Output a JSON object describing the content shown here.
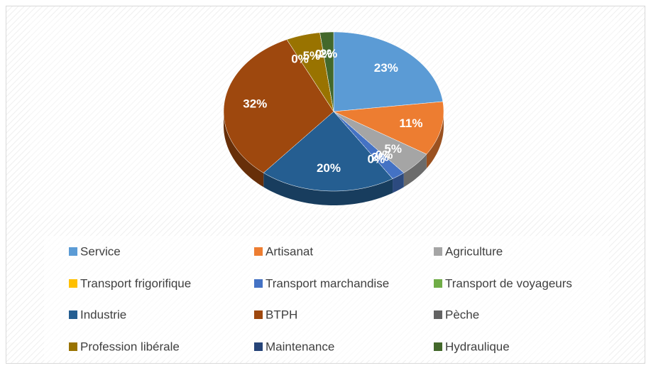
{
  "chart_data": {
    "type": "pie3d",
    "categories": [
      "Service",
      "Artisanat",
      "Agriculture",
      "Transport frigorifique",
      "Transport marchandise",
      "Transport de voyageurs",
      "Industrie",
      "BTPH",
      "Pèche",
      "Profession libérale",
      "Maintenance",
      "Hydraulique"
    ],
    "values": [
      23,
      11,
      5,
      0,
      2,
      0,
      20,
      32,
      0,
      5,
      0,
      2
    ],
    "value_labels": [
      "23%",
      "11%",
      "5%",
      "0%",
      "2%",
      "0%",
      "20%",
      "32%",
      "0%",
      "5%",
      "0%",
      "2%"
    ],
    "colors": [
      "#5b9bd5",
      "#ed7d31",
      "#a5a5a5",
      "#ffc000",
      "#4472c4",
      "#70ad47",
      "#255e91",
      "#9e480e",
      "#636363",
      "#997300",
      "#264478",
      "#43682b"
    ],
    "legend": "bottom"
  }
}
